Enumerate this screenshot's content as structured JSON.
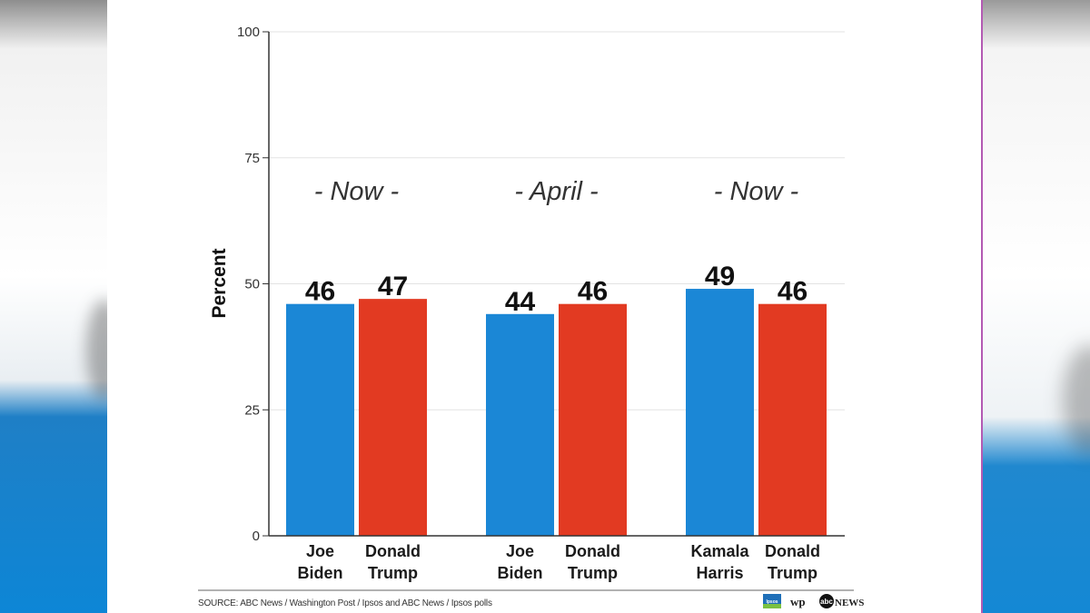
{
  "chart_data": {
    "type": "bar",
    "ylabel": "Percent",
    "ylim": [
      0,
      100
    ],
    "yticks": [
      0,
      25,
      50,
      75,
      100
    ],
    "grid": true,
    "groups": [
      {
        "title": "- Now -",
        "bars": [
          {
            "label_lines": [
              "Joe",
              "Biden"
            ],
            "value": 46,
            "color": "#1b87d6"
          },
          {
            "label_lines": [
              "Donald",
              "Trump"
            ],
            "value": 47,
            "color": "#e23a22"
          }
        ]
      },
      {
        "title": "- April -",
        "bars": [
          {
            "label_lines": [
              "Joe",
              "Biden"
            ],
            "value": 44,
            "color": "#1b87d6"
          },
          {
            "label_lines": [
              "Donald",
              "Trump"
            ],
            "value": 46,
            "color": "#e23a22"
          }
        ]
      },
      {
        "title": "- Now -",
        "bars": [
          {
            "label_lines": [
              "Kamala",
              "Harris"
            ],
            "value": 49,
            "color": "#1b87d6"
          },
          {
            "label_lines": [
              "Donald",
              "Trump"
            ],
            "value": 46,
            "color": "#e23a22"
          }
        ]
      }
    ]
  },
  "source": "SOURCE: ABC News / Washington Post / Ipsos and ABC News / Ipsos polls",
  "logos": {
    "ipsos": "Ipsos",
    "wp": "wp",
    "abc_badge": "abc",
    "abc_news": "NEWS"
  },
  "colors": {
    "democrat_blue": "#1b87d6",
    "republican_red": "#e23a22",
    "grid": "#e3e3e3",
    "axis": "#333333"
  }
}
